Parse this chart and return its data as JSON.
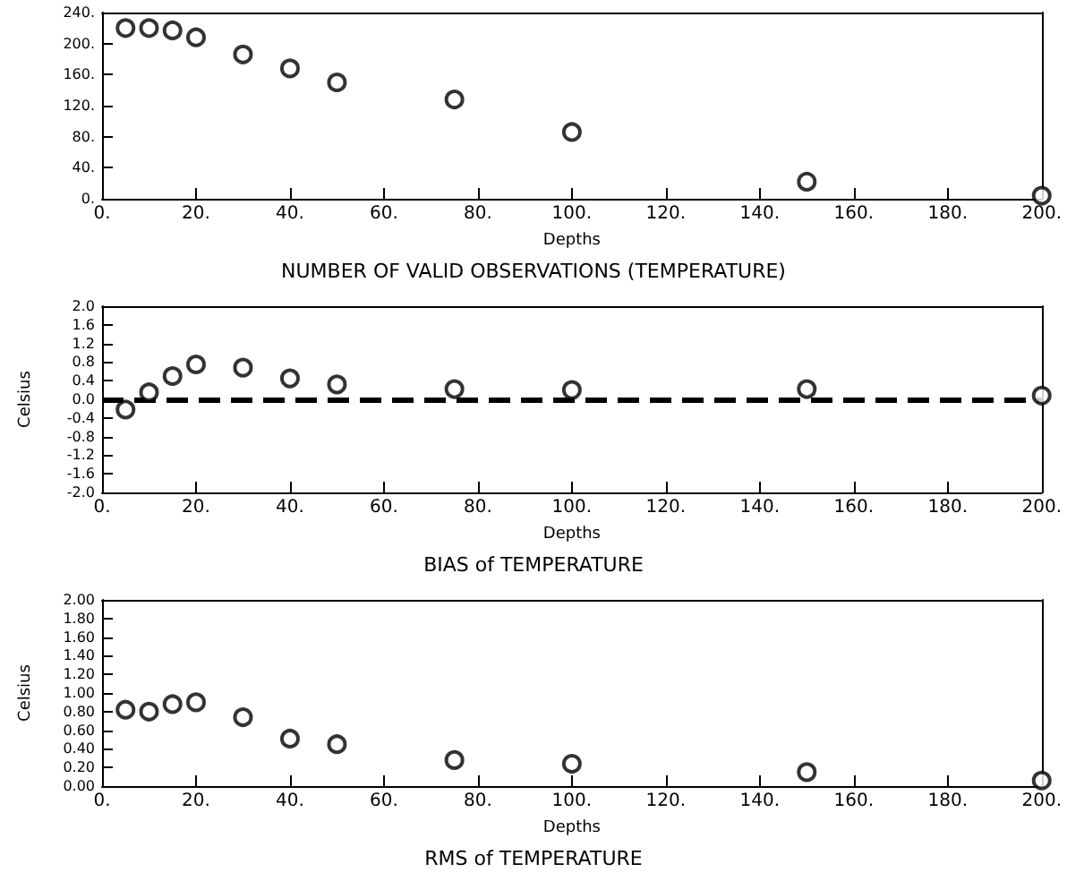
{
  "chart_data": [
    {
      "type": "scatter",
      "title": "NUMBER OF VALID OBSERVATIONS (TEMPERATURE)",
      "xlabel": "Depths",
      "marker": "circle",
      "grid": false,
      "x": [
        5,
        10,
        15,
        20,
        30,
        40,
        50,
        75,
        100,
        150,
        200
      ],
      "series": [
        {
          "color": "#000000",
          "values": [
            220,
            220,
            217,
            208,
            186,
            168,
            150,
            128,
            86,
            22,
            4
          ]
        }
      ],
      "xlim": [
        0,
        200
      ],
      "xticks": [
        {
          "value": 0,
          "label": "0."
        },
        {
          "value": 20,
          "label": "20."
        },
        {
          "value": 40,
          "label": "40."
        },
        {
          "value": 60,
          "label": "60."
        },
        {
          "value": 80,
          "label": "80."
        },
        {
          "value": 100,
          "label": "100."
        },
        {
          "value": 120,
          "label": "120."
        },
        {
          "value": 140,
          "label": "140."
        },
        {
          "value": 160,
          "label": "160."
        },
        {
          "value": 180,
          "label": "180."
        },
        {
          "value": 200,
          "label": "200."
        }
      ],
      "ylim": [
        0,
        240
      ],
      "yticks": [
        {
          "value": 0,
          "label": "0."
        },
        {
          "value": 40,
          "label": "40."
        },
        {
          "value": 80,
          "label": "80."
        },
        {
          "value": 120,
          "label": "120."
        },
        {
          "value": 160,
          "label": "160."
        },
        {
          "value": 200,
          "label": "200."
        },
        {
          "value": 240,
          "label": "240."
        }
      ]
    },
    {
      "type": "scatter",
      "title": "BIAS of TEMPERATURE",
      "xlabel": "Depths",
      "ylabel": "Celsius",
      "marker": "circle",
      "grid": false,
      "x": [
        5,
        10,
        15,
        20,
        30,
        40,
        50,
        75,
        100,
        150,
        200
      ],
      "series": [
        {
          "color": "#000000",
          "values": [
            -0.22,
            0.15,
            0.5,
            0.75,
            0.68,
            0.45,
            0.32,
            0.22,
            0.2,
            0.22,
            0.08
          ]
        }
      ],
      "ref_lines": [
        {
          "axis": "y",
          "value": 0,
          "color": "#000000",
          "line_style": "dashed"
        }
      ],
      "xlim": [
        0,
        200
      ],
      "xticks": [
        {
          "value": 0,
          "label": "0."
        },
        {
          "value": 20,
          "label": "20."
        },
        {
          "value": 40,
          "label": "40."
        },
        {
          "value": 60,
          "label": "60."
        },
        {
          "value": 80,
          "label": "80."
        },
        {
          "value": 100,
          "label": "100."
        },
        {
          "value": 120,
          "label": "120."
        },
        {
          "value": 140,
          "label": "140."
        },
        {
          "value": 160,
          "label": "160."
        },
        {
          "value": 180,
          "label": "180."
        },
        {
          "value": 200,
          "label": "200."
        }
      ],
      "ylim": [
        -2,
        2
      ],
      "yticks": [
        {
          "value": -2,
          "label": "-2.0"
        },
        {
          "value": -1.6,
          "label": "-1.6"
        },
        {
          "value": -1.2,
          "label": "-1.2"
        },
        {
          "value": -0.8,
          "label": "-0.8"
        },
        {
          "value": -0.4,
          "label": "-0.4"
        },
        {
          "value": 0,
          "label": "0.0"
        },
        {
          "value": 0.4,
          "label": "0.4"
        },
        {
          "value": 0.8,
          "label": "0.8"
        },
        {
          "value": 1.2,
          "label": "1.2"
        },
        {
          "value": 1.6,
          "label": "1.6"
        },
        {
          "value": 2,
          "label": "2.0"
        }
      ]
    },
    {
      "type": "scatter",
      "title": "RMS of TEMPERATURE",
      "xlabel": "Depths",
      "ylabel": "Celsius",
      "marker": "circle",
      "grid": false,
      "x": [
        5,
        10,
        15,
        20,
        30,
        40,
        50,
        75,
        100,
        150,
        200
      ],
      "series": [
        {
          "color": "#000000",
          "values": [
            0.82,
            0.8,
            0.88,
            0.9,
            0.74,
            0.51,
            0.45,
            0.28,
            0.24,
            0.15,
            0.06
          ]
        }
      ],
      "xlim": [
        0,
        200
      ],
      "xticks": [
        {
          "value": 0,
          "label": "0."
        },
        {
          "value": 20,
          "label": "20."
        },
        {
          "value": 40,
          "label": "40."
        },
        {
          "value": 60,
          "label": "60."
        },
        {
          "value": 80,
          "label": "80."
        },
        {
          "value": 100,
          "label": "100."
        },
        {
          "value": 120,
          "label": "120."
        },
        {
          "value": 140,
          "label": "140."
        },
        {
          "value": 160,
          "label": "160."
        },
        {
          "value": 180,
          "label": "180."
        },
        {
          "value": 200,
          "label": "200."
        }
      ],
      "ylim": [
        0,
        2
      ],
      "yticks": [
        {
          "value": 0,
          "label": "0.00"
        },
        {
          "value": 0.2,
          "label": "0.20"
        },
        {
          "value": 0.4,
          "label": "0.40"
        },
        {
          "value": 0.6,
          "label": "0.60"
        },
        {
          "value": 0.8,
          "label": "0.80"
        },
        {
          "value": 1.0,
          "label": "1.00"
        },
        {
          "value": 1.2,
          "label": "1.20"
        },
        {
          "value": 1.4,
          "label": "1.40"
        },
        {
          "value": 1.6,
          "label": "1.60"
        },
        {
          "value": 1.8,
          "label": "1.80"
        },
        {
          "value": 2.0,
          "label": "2.00"
        }
      ]
    }
  ]
}
